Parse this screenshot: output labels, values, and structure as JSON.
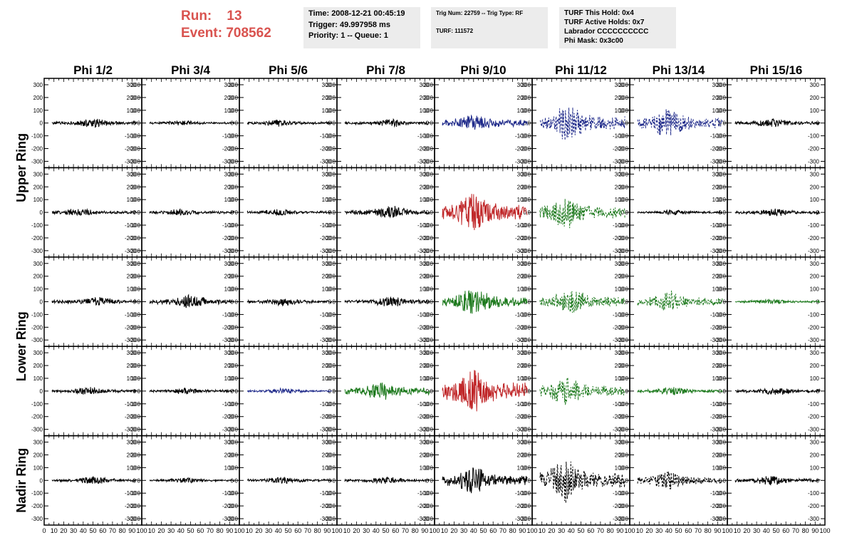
{
  "header": {
    "run_label": "Run:",
    "run_value": "13",
    "event_label": "Event:",
    "event_value": "708562",
    "time_line": "Time: 2008-12-21 00:45:19",
    "trigger_line": "Trigger: 49.997958 ms",
    "priority_line": "Priority: 1 -- Queue: 1",
    "trig_line": "Trig Num: 22759 -- Trig Type: RF",
    "turf_line": "TURF: 111572",
    "turf_hold_line": "TURF This Hold: 0x4",
    "turf_active_line": "TURF Active Holds: 0x7",
    "labrador_line": "Labrador CCCCCCCCCC",
    "phimask_line": "Phi Mask: 0x3c00"
  },
  "chart_data": {
    "type": "line",
    "columns": [
      "Phi 1/2",
      "Phi 3/4",
      "Phi 5/6",
      "Phi 7/8",
      "Phi 9/10",
      "Phi 11/12",
      "Phi 13/14",
      "Phi 15/16"
    ],
    "rows": [
      "Upper Ring",
      "Lower Ring",
      "Nadir Ring"
    ],
    "panel_rows": 5,
    "ylim": [
      -350,
      350
    ],
    "yticks": [
      -300,
      -200,
      -100,
      0,
      100,
      200,
      300
    ],
    "xlim": [
      0,
      100
    ],
    "xticks": [
      0,
      10,
      20,
      30,
      40,
      50,
      60,
      70,
      80,
      90,
      100
    ],
    "colors": {
      "black": "#000000",
      "blue": "#1f2a8a",
      "red": "#c0282a",
      "green": "#1e7a1e"
    },
    "panels": [
      [
        "black:35:50:0",
        "black:20:40:0",
        "black:25:40:0",
        "black:30:55:0",
        "blue:70:40:0",
        "blue:140:38:1",
        "blue:110:40:1",
        "black:35:45:0"
      ],
      [
        "black:30:35:0",
        "black:25:40:0",
        "black:25:40:0",
        "black:50:55:0",
        "red:150:40:0",
        "green:120:35:1",
        "black:20:45:0",
        "black:30:50:0"
      ],
      [
        "black:35:55:0",
        "black:50:50:0",
        "black:30:45:0",
        "black:40:55:0",
        "green:100:40:0",
        "green:100:40:1",
        "green:80:40:1",
        "green:20:45:0"
      ],
      [
        "black:30:45:0",
        "black:25:45:0",
        "blue:20:45:0",
        "green:70:45:0",
        "red:160:40:0",
        "green:110:35:1",
        "green:30:45:0",
        "black:30:50:0"
      ],
      [
        "black:30:50:0",
        "black:20:45:0",
        "black:25:45:0",
        "black:25:50:0",
        "black:100:40:0",
        "black:160:35:1",
        "black:70:40:1",
        "black:35:45:0"
      ]
    ]
  }
}
